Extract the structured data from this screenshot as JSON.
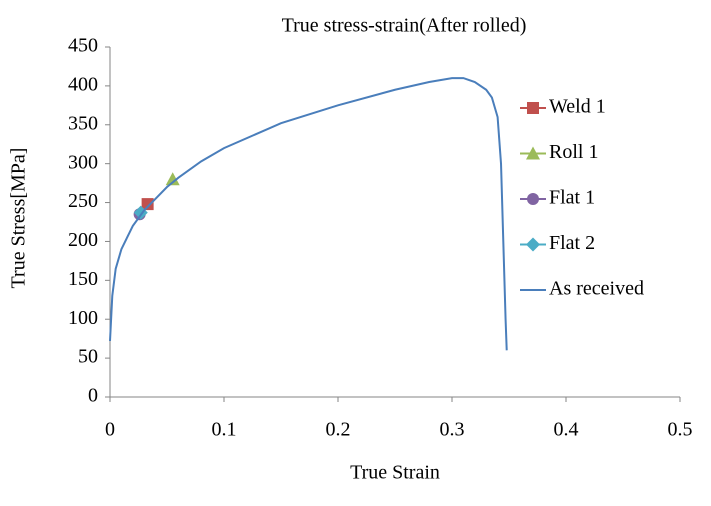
{
  "chart_data": {
    "type": "line",
    "title": "True stress-strain(After rolled)",
    "xlabel": "True Strain",
    "ylabel": "True Stress[MPa]",
    "xlim": [
      0,
      0.5
    ],
    "xticks": [
      0,
      0.1,
      0.2,
      0.3,
      0.4,
      0.5
    ],
    "ylim": [
      0,
      450
    ],
    "yticks": [
      0,
      50,
      100,
      150,
      200,
      250,
      300,
      350,
      400,
      450
    ],
    "grid": false,
    "legend": "right",
    "series": [
      {
        "name": "Weld 1",
        "color": "#c0504d",
        "marker": "square",
        "x": [
          0.033
        ],
        "values": [
          248
        ]
      },
      {
        "name": "Roll 1",
        "color": "#9bbb59",
        "marker": "triangle",
        "x": [
          0.055
        ],
        "values": [
          280
        ]
      },
      {
        "name": "Flat 1",
        "color": "#8064a2",
        "marker": "circle",
        "x": [
          0.026
        ],
        "values": [
          235
        ]
      },
      {
        "name": "Flat 2",
        "color": "#4bacc6",
        "marker": "diamond",
        "x": [
          0.027
        ],
        "values": [
          237
        ]
      },
      {
        "name": "As received",
        "color": "#4a7ebb",
        "marker": "none",
        "x": [
          0,
          0.002,
          0.005,
          0.01,
          0.02,
          0.03,
          0.04,
          0.05,
          0.06,
          0.08,
          0.1,
          0.15,
          0.2,
          0.25,
          0.28,
          0.3,
          0.31,
          0.32,
          0.33,
          0.335,
          0.34,
          0.343,
          0.345,
          0.347,
          0.348
        ],
        "values": [
          72,
          130,
          165,
          190,
          220,
          240,
          255,
          270,
          282,
          303,
          320,
          352,
          375,
          395,
          405,
          410,
          410,
          405,
          395,
          385,
          360,
          300,
          200,
          100,
          60
        ]
      }
    ]
  }
}
